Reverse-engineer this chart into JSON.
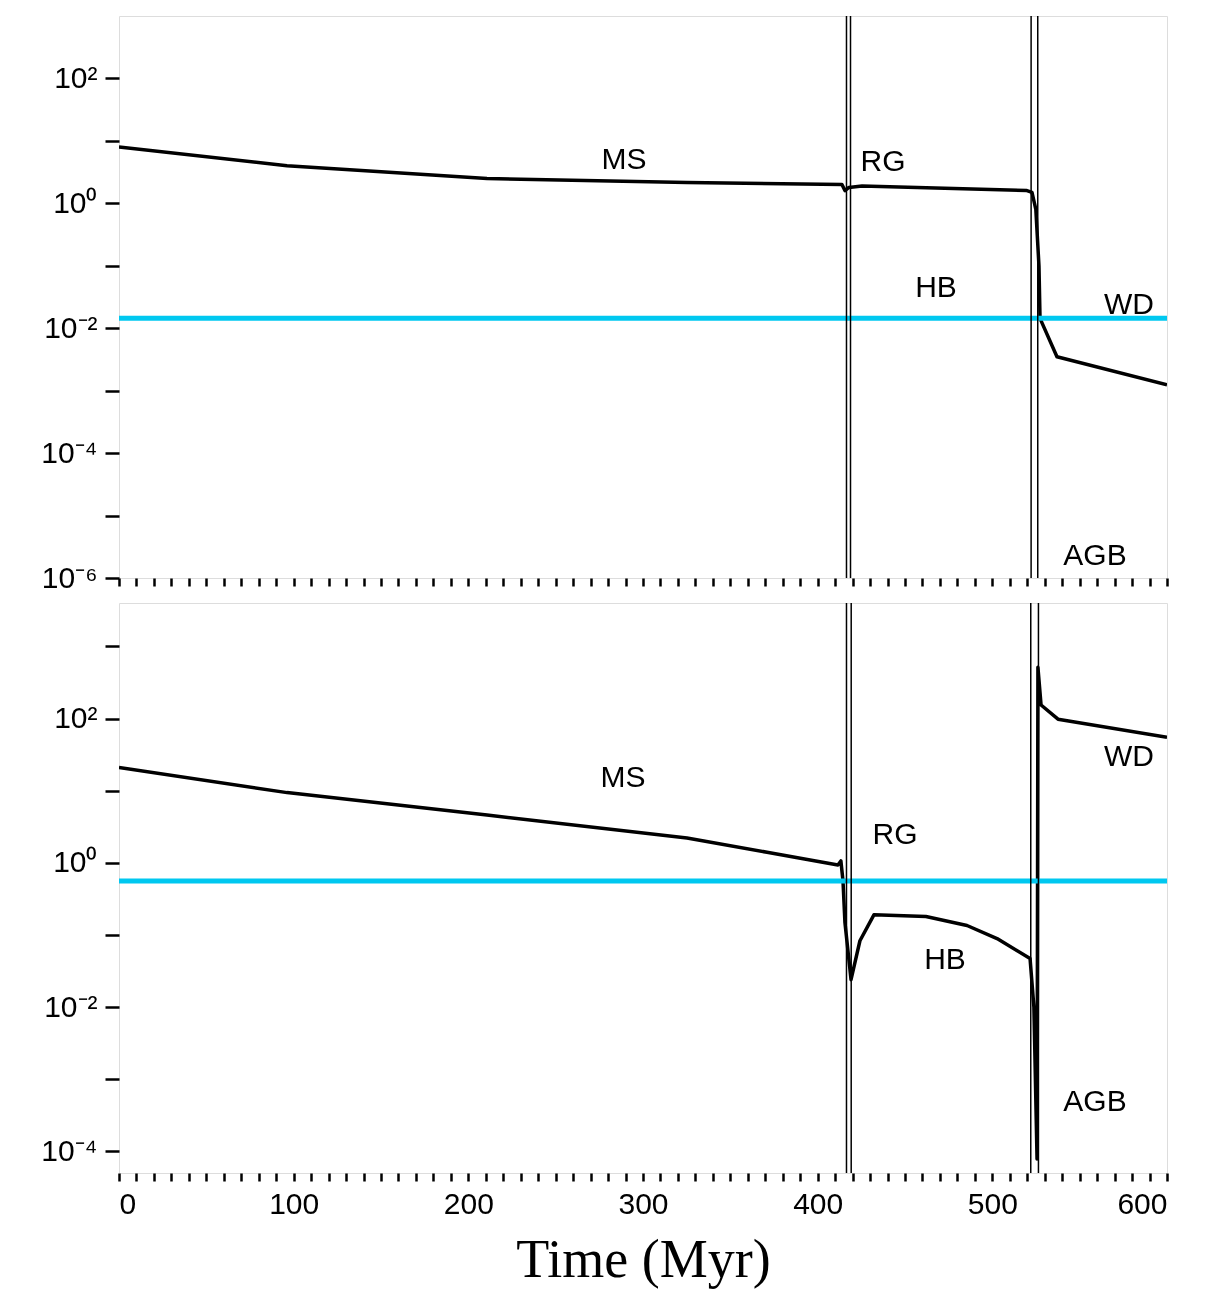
{
  "chart_data": [
    {
      "type": "line",
      "log": "y",
      "grid": false,
      "tick_labels": "y",
      "xlim": [
        0,
        600
      ],
      "ylim": [
        1e-06,
        1000
      ],
      "xticks": [
        0,
        {
          "value": 10,
          "label": null
        },
        {
          "value": 20,
          "label": null
        },
        {
          "value": 30,
          "label": null
        },
        {
          "value": 40,
          "label": null
        },
        {
          "value": 50,
          "label": null
        },
        {
          "value": 60,
          "label": null
        },
        {
          "value": 70,
          "label": null
        },
        {
          "value": 80,
          "label": null
        },
        {
          "value": 90,
          "label": null
        },
        100,
        {
          "value": 110,
          "label": null
        },
        {
          "value": 120,
          "label": null
        },
        {
          "value": 130,
          "label": null
        },
        {
          "value": 140,
          "label": null
        },
        {
          "value": 150,
          "label": null
        },
        {
          "value": 160,
          "label": null
        },
        {
          "value": 170,
          "label": null
        },
        {
          "value": 180,
          "label": null
        },
        {
          "value": 190,
          "label": null
        },
        200,
        {
          "value": 210,
          "label": null
        },
        {
          "value": 220,
          "label": null
        },
        {
          "value": 230,
          "label": null
        },
        {
          "value": 240,
          "label": null
        },
        {
          "value": 250,
          "label": null
        },
        {
          "value": 260,
          "label": null
        },
        {
          "value": 270,
          "label": null
        },
        {
          "value": 280,
          "label": null
        },
        {
          "value": 290,
          "label": null
        },
        300,
        {
          "value": 310,
          "label": null
        },
        {
          "value": 320,
          "label": null
        },
        {
          "value": 330,
          "label": null
        },
        {
          "value": 340,
          "label": null
        },
        {
          "value": 350,
          "label": null
        },
        {
          "value": 360,
          "label": null
        },
        {
          "value": 370,
          "label": null
        },
        {
          "value": 380,
          "label": null
        },
        {
          "value": 390,
          "label": null
        },
        400,
        {
          "value": 410,
          "label": null
        },
        {
          "value": 420,
          "label": null
        },
        {
          "value": 430,
          "label": null
        },
        {
          "value": 440,
          "label": null
        },
        {
          "value": 450,
          "label": null
        },
        {
          "value": 460,
          "label": null
        },
        {
          "value": 470,
          "label": null
        },
        {
          "value": 480,
          "label": null
        },
        {
          "value": 490,
          "label": null
        },
        500,
        {
          "value": 510,
          "label": null
        },
        {
          "value": 520,
          "label": null
        },
        {
          "value": 530,
          "label": null
        },
        {
          "value": 540,
          "label": null
        },
        {
          "value": 550,
          "label": null
        },
        {
          "value": 560,
          "label": null
        },
        {
          "value": 570,
          "label": null
        },
        {
          "value": 580,
          "label": null
        },
        {
          "value": 590,
          "label": null
        },
        600
      ],
      "yticks": [
        {
          "value": 1e-06,
          "label": "10⁻⁶"
        },
        {
          "value": 1e-05,
          "label": null
        },
        {
          "value": 0.0001,
          "label": "10⁻⁴"
        },
        {
          "value": 0.001,
          "label": null
        },
        {
          "value": 0.01,
          "label": "10⁻²"
        },
        {
          "value": 0.1,
          "label": null
        },
        {
          "value": 1,
          "label": "10⁰"
        },
        {
          "value": 10,
          "label": null
        },
        {
          "value": 100,
          "label": "10²"
        }
      ],
      "x": [
        0,
        96.2,
        210.7,
        325.2,
        413.9,
        415.6,
        417.9,
        425.4,
        519.8,
        522.7,
        524.9,
        526.7,
        527.3,
        537,
        600
      ],
      "series": [
        {
          "color": "#000000",
          "values": [
            8.0,
            4.0,
            2.5,
            2.15,
            2.0,
            1.6,
            1.8,
            1.9,
            1.6,
            1.5,
            0.8,
            0.1,
            0.0144,
            0.0035,
            0.00124
          ]
        }
      ],
      "ref_lines": [
        {
          "axis": "y",
          "value": 0.0144,
          "color": "#00c8f0"
        },
        {
          "axis": "x",
          "value": 416.5,
          "color": "#000000"
        },
        {
          "axis": "x",
          "value": 418.8,
          "color": "#000000"
        },
        {
          "axis": "x",
          "value": 522.2,
          "color": "#000000"
        },
        {
          "axis": "x",
          "value": 526,
          "color": "#000000"
        }
      ],
      "annotations": [
        "MS",
        "RG",
        "HB",
        "WD",
        "AGB"
      ]
    },
    {
      "type": "line",
      "log": "y",
      "grid": false,
      "xlabel": "Time (Myr)",
      "xlim": [
        0,
        600
      ],
      "ylim": [
        5e-05,
        4000
      ],
      "xticks": [
        0,
        {
          "value": 10,
          "label": null
        },
        {
          "value": 20,
          "label": null
        },
        {
          "value": 30,
          "label": null
        },
        {
          "value": 40,
          "label": null
        },
        {
          "value": 50,
          "label": null
        },
        {
          "value": 60,
          "label": null
        },
        {
          "value": 70,
          "label": null
        },
        {
          "value": 80,
          "label": null
        },
        {
          "value": 90,
          "label": null
        },
        100,
        {
          "value": 110,
          "label": null
        },
        {
          "value": 120,
          "label": null
        },
        {
          "value": 130,
          "label": null
        },
        {
          "value": 140,
          "label": null
        },
        {
          "value": 150,
          "label": null
        },
        {
          "value": 160,
          "label": null
        },
        {
          "value": 170,
          "label": null
        },
        {
          "value": 180,
          "label": null
        },
        {
          "value": 190,
          "label": null
        },
        200,
        {
          "value": 210,
          "label": null
        },
        {
          "value": 220,
          "label": null
        },
        {
          "value": 230,
          "label": null
        },
        {
          "value": 240,
          "label": null
        },
        {
          "value": 250,
          "label": null
        },
        {
          "value": 260,
          "label": null
        },
        {
          "value": 270,
          "label": null
        },
        {
          "value": 280,
          "label": null
        },
        {
          "value": 290,
          "label": null
        },
        300,
        {
          "value": 310,
          "label": null
        },
        {
          "value": 320,
          "label": null
        },
        {
          "value": 330,
          "label": null
        },
        {
          "value": 340,
          "label": null
        },
        {
          "value": 350,
          "label": null
        },
        {
          "value": 360,
          "label": null
        },
        {
          "value": 370,
          "label": null
        },
        {
          "value": 380,
          "label": null
        },
        {
          "value": 390,
          "label": null
        },
        400,
        {
          "value": 410,
          "label": null
        },
        {
          "value": 420,
          "label": null
        },
        {
          "value": 430,
          "label": null
        },
        {
          "value": 440,
          "label": null
        },
        {
          "value": 450,
          "label": null
        },
        {
          "value": 460,
          "label": null
        },
        {
          "value": 470,
          "label": null
        },
        {
          "value": 480,
          "label": null
        },
        {
          "value": 490,
          "label": null
        },
        500,
        {
          "value": 510,
          "label": null
        },
        {
          "value": 520,
          "label": null
        },
        {
          "value": 530,
          "label": null
        },
        {
          "value": 540,
          "label": null
        },
        {
          "value": 550,
          "label": null
        },
        {
          "value": 560,
          "label": null
        },
        {
          "value": 570,
          "label": null
        },
        {
          "value": 580,
          "label": null
        },
        {
          "value": 590,
          "label": null
        },
        600
      ],
      "yticks": [
        {
          "value": 0.0001,
          "label": "10⁻⁴"
        },
        {
          "value": 0.001,
          "label": null
        },
        {
          "value": 0.01,
          "label": "10⁻²"
        },
        {
          "value": 0.1,
          "label": null
        },
        {
          "value": 1,
          "label": "10⁰"
        },
        {
          "value": 10,
          "label": null
        },
        {
          "value": 100,
          "label": "10²"
        },
        {
          "value": 1000,
          "label": null
        }
      ],
      "x": [
        0,
        96.2,
        210.7,
        325.2,
        371,
        411.6,
        413.3,
        414.5,
        415.6,
        419.1,
        424.2,
        432.2,
        462,
        485.5,
        502.7,
        521.6,
        523.8,
        525.6,
        526.1,
        527.9,
        537.6,
        600
      ],
      "series": [
        {
          "color": "#000000",
          "values": [
            21,
            9.4,
            4.6,
            2.2,
            1.4,
            0.93,
            1.06,
            0.56,
            0.15,
            0.024,
            0.083,
            0.19,
            0.18,
            0.135,
            0.089,
            0.047,
            0.01,
            7.8e-05,
            513,
            154,
            98,
            55
          ]
        }
      ],
      "ref_lines": [
        {
          "axis": "y",
          "value": 0.56,
          "color": "#00c8f0"
        },
        {
          "axis": "x",
          "value": 416.5,
          "color": "#000000"
        },
        {
          "axis": "x",
          "value": 419.2,
          "color": "#000000"
        },
        {
          "axis": "x",
          "value": 522,
          "color": "#000000"
        },
        {
          "axis": "x",
          "value": 526.4,
          "color": "#000000"
        }
      ],
      "annotations": [
        "MS",
        "RG",
        "HB",
        "WD",
        "AGB"
      ]
    }
  ]
}
